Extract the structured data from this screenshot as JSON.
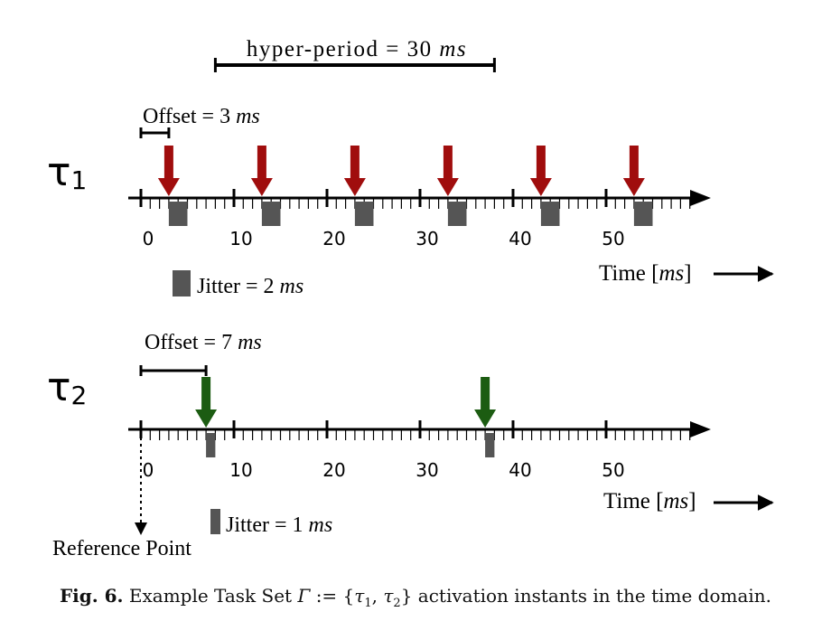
{
  "hyper_period": {
    "label": "hyper-period = 30",
    "unit": "ms",
    "start_ms": 8,
    "end_ms": 38
  },
  "timeline_ticks_ms": [
    0,
    10,
    20,
    30,
    40,
    50
  ],
  "time_label": {
    "text": "Time [",
    "unit": "ms",
    "close": "]"
  },
  "tau1": {
    "symbol": "τ",
    "index": "1",
    "offset_label": "Offset = 3",
    "offset_unit": "ms",
    "offset_ms": 3,
    "activations_ms": [
      3,
      13,
      23,
      33,
      43,
      53
    ],
    "jitter_label": "Jitter = 2",
    "jitter_unit": "ms",
    "jitter_ms": 2,
    "arrow_color": "#a00d0d"
  },
  "tau2": {
    "symbol": "τ",
    "index": "2",
    "offset_label": "Offset = 7",
    "offset_unit": "ms",
    "offset_ms": 7,
    "activations_ms": [
      7,
      37
    ],
    "jitter_label": "Jitter = 1",
    "jitter_unit": "ms",
    "jitter_ms": 1,
    "arrow_color": "#1c5c12"
  },
  "jitter_color": "#555555",
  "reference_point_label": "Reference Point",
  "caption": {
    "fig": "Fig. 6.",
    "text_before": "Example Task Set",
    "gamma": "Γ",
    "assign": ":= {",
    "tau": "τ",
    "sub1": "1",
    "sep": ", ",
    "sub2": "2",
    "close": "}",
    "text_after": "activation instants in the time domain."
  }
}
